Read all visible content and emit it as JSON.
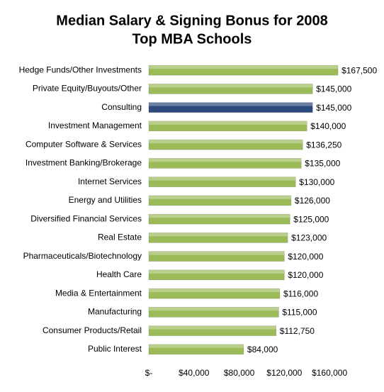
{
  "chart_data": {
    "type": "hbar",
    "title": [
      "Median Salary & Signing Bonus for 2008",
      "Top MBA Schools"
    ],
    "categories": [
      "Hedge Funds/Other Investments",
      "Private Equity/Buyouts/Other",
      "Consulting",
      "Investment Management",
      "Computer Software & Services",
      "Investment Banking/Brokerage",
      "Internet Services",
      "Energy and Utilities",
      "Diversified Financial Services",
      "Real Estate",
      "Pharmaceuticals/Biotechnology",
      "Health Care",
      "Media & Entertainment",
      "Manufacturing",
      "Consumer Products/Retail",
      "Public Interest"
    ],
    "values": [
      167500,
      145000,
      145000,
      140000,
      136250,
      135000,
      130000,
      126000,
      125000,
      123000,
      120000,
      120000,
      116000,
      115000,
      112750,
      84000
    ],
    "value_labels": [
      "$167,500",
      "$145,000",
      "$145,000",
      "$140,000",
      "$136,250",
      "$135,000",
      "$130,000",
      "$126,000",
      "$125,000",
      "$123,000",
      "$120,000",
      "$120,000",
      "$116,000",
      "$115,000",
      "$112,750",
      "$84,000"
    ],
    "colors": [
      "#9bbb59",
      "#9bbb59",
      "#2c4a7c",
      "#9bbb59",
      "#9bbb59",
      "#9bbb59",
      "#9bbb59",
      "#9bbb59",
      "#9bbb59",
      "#9bbb59",
      "#9bbb59",
      "#9bbb59",
      "#9bbb59",
      "#9bbb59",
      "#9bbb59",
      "#9bbb59"
    ],
    "xlim": [
      0,
      180000
    ],
    "xticks": [
      {
        "value": 0,
        "label": "$-"
      },
      {
        "value": 40000,
        "label": "$40,000"
      },
      {
        "value": 80000,
        "label": "$80,000"
      },
      {
        "value": 120000,
        "label": "$120,000"
      },
      {
        "value": 160000,
        "label": "$160,000"
      }
    ]
  }
}
